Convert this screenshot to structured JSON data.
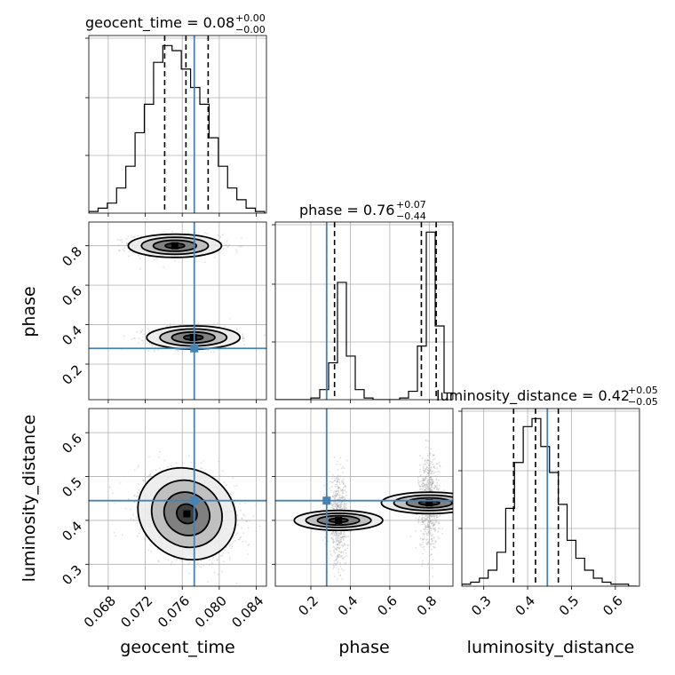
{
  "chart_data": {
    "type": "corner",
    "parameters": [
      {
        "name": "geocent_time",
        "axis_label": "geocent_time",
        "title": {
          "label": "geocent_time = 0.08",
          "plus": "+0.00",
          "minus": "−0.00"
        },
        "range": [
          0.0659,
          0.0851
        ],
        "ticks": [
          0.068,
          0.072,
          0.076,
          0.08,
          0.084
        ],
        "tick_labels": [
          "0.068",
          "0.072",
          "0.076",
          "0.080",
          "0.084"
        ],
        "truth": 0.0773,
        "quantiles": [
          0.0741,
          0.0764,
          0.0788
        ],
        "hist_bins": [
          0.0659,
          0.0669,
          0.0679,
          0.0689,
          0.0699,
          0.0709,
          0.0719,
          0.0729,
          0.0739,
          0.0749,
          0.0759,
          0.0769,
          0.0779,
          0.0789,
          0.0799,
          0.0809,
          0.0819,
          0.0829,
          0.0839,
          0.0849
        ],
        "hist_counts": [
          1,
          3,
          6,
          15,
          28,
          48,
          65,
          90,
          100,
          97,
          86,
          75,
          65,
          45,
          28,
          15,
          8,
          3,
          1
        ]
      },
      {
        "name": "phase",
        "axis_label": "phase",
        "title": {
          "label": "phase = 0.76",
          "plus": "+0.07",
          "minus": "−0.44"
        },
        "range": [
          0.02,
          0.92
        ],
        "ticks": [
          0.2,
          0.4,
          0.6,
          0.8
        ],
        "tick_labels": [
          "0.2",
          "0.4",
          "0.6",
          "0.8"
        ],
        "truth": 0.28,
        "quantiles": [
          0.32,
          0.76,
          0.835
        ],
        "hist_bins": [
          0.02,
          0.065,
          0.11,
          0.155,
          0.2,
          0.245,
          0.29,
          0.335,
          0.38,
          0.425,
          0.47,
          0.515,
          0.56,
          0.605,
          0.65,
          0.695,
          0.74,
          0.785,
          0.83,
          0.875,
          0.92
        ],
        "hist_counts": [
          0,
          0,
          0,
          0,
          1,
          6,
          22,
          70,
          26,
          6,
          1,
          0,
          0,
          0,
          1,
          5,
          32,
          100,
          44,
          4
        ]
      },
      {
        "name": "luminosity_distance",
        "axis_label": "luminosity_distance",
        "title": {
          "label": "luminosity_distance = 0.42",
          "plus": "+0.05",
          "minus": "−0.05"
        },
        "range": [
          0.25,
          0.655
        ],
        "ticks": [
          0.3,
          0.4,
          0.5,
          0.6
        ],
        "tick_labels": [
          "0.3",
          "0.4",
          "0.5",
          "0.6"
        ],
        "truth": 0.445,
        "quantiles": [
          0.368,
          0.418,
          0.47
        ],
        "hist_bins": [
          0.25,
          0.27,
          0.29,
          0.31,
          0.33,
          0.35,
          0.37,
          0.39,
          0.41,
          0.43,
          0.45,
          0.47,
          0.49,
          0.51,
          0.53,
          0.55,
          0.57,
          0.59,
          0.61,
          0.63,
          0.65
        ],
        "hist_counts": [
          1,
          2,
          4,
          8,
          17,
          39,
          62,
          80,
          84,
          70,
          57,
          41,
          23,
          14,
          8,
          4,
          2,
          1,
          1,
          0
        ]
      }
    ],
    "truth_color": "#4682b4",
    "scatter_color": "#a0a0a0",
    "contour_fill_colors": [
      "#ebebeb",
      "#c0c0c0",
      "#808080",
      "#3c3c3c"
    ],
    "joint_modes": [
      {
        "pair": [
          "geocent_time",
          "phase"
        ],
        "weight": 0.5,
        "mean": [
          0.0752,
          0.8
        ],
        "sd": [
          0.0024,
          0.028
        ],
        "rho": 0
      },
      {
        "pair": [
          "geocent_time",
          "phase"
        ],
        "weight": 0.5,
        "mean": [
          0.0772,
          0.335
        ],
        "sd": [
          0.0024,
          0.028
        ],
        "rho": 0
      },
      {
        "pair": [
          "geocent_time",
          "luminosity_distance"
        ],
        "weight": 1,
        "mean": [
          0.0765,
          0.415
        ],
        "sd": [
          0.0026,
          0.048
        ],
        "rho": -0.25
      },
      {
        "pair": [
          "phase",
          "luminosity_distance"
        ],
        "weight": 0.45,
        "mean": [
          0.34,
          0.4
        ],
        "sd": [
          0.024,
          0.048
        ],
        "rho": 0
      },
      {
        "pair": [
          "phase",
          "luminosity_distance"
        ],
        "weight": 0.55,
        "mean": [
          0.8,
          0.44
        ],
        "sd": [
          0.026,
          0.052
        ],
        "rho": 0
      }
    ]
  }
}
